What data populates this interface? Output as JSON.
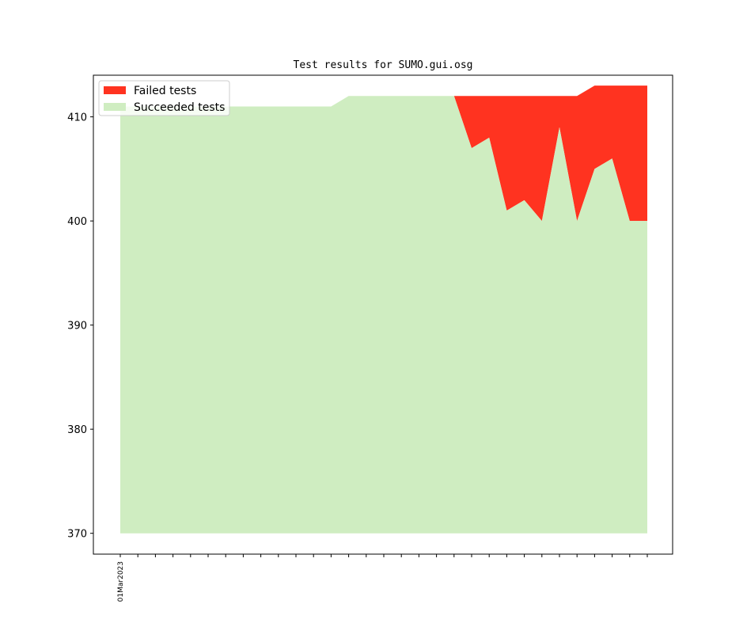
{
  "chart_data": {
    "type": "area",
    "title": "Test results for SUMO.gui.osg",
    "xlabel": "",
    "ylabel": "",
    "ylim": [
      368,
      414
    ],
    "yticks": [
      370,
      380,
      390,
      400,
      410
    ],
    "x_tick_count": 31,
    "x_tick_labels": [
      "01Mar2023"
    ],
    "baseline": 370,
    "legend_position": "upper-left",
    "series": [
      {
        "name": "Failed tests",
        "color": "#ff3320",
        "values": [
          0,
          0,
          0,
          0,
          0,
          0,
          0,
          0,
          0,
          0,
          0,
          0,
          0,
          0,
          0,
          0,
          0,
          0,
          0,
          0,
          5,
          4,
          11,
          10,
          12,
          3,
          12,
          8,
          7,
          13,
          13
        ]
      },
      {
        "name": "Succeeded tests",
        "color": "#cfedc1",
        "values": [
          411,
          411,
          411,
          411,
          411,
          411,
          411,
          411,
          411,
          411,
          411,
          411,
          411,
          412,
          412,
          412,
          412,
          412,
          412,
          412,
          407,
          408,
          401,
          402,
          400,
          409,
          400,
          405,
          406,
          400,
          400
        ]
      }
    ],
    "totals": [
      411,
      411,
      411,
      411,
      411,
      411,
      411,
      411,
      411,
      411,
      411,
      411,
      411,
      412,
      412,
      412,
      412,
      412,
      412,
      412,
      412,
      412,
      412,
      412,
      412,
      412,
      412,
      413,
      413,
      413,
      413
    ]
  }
}
